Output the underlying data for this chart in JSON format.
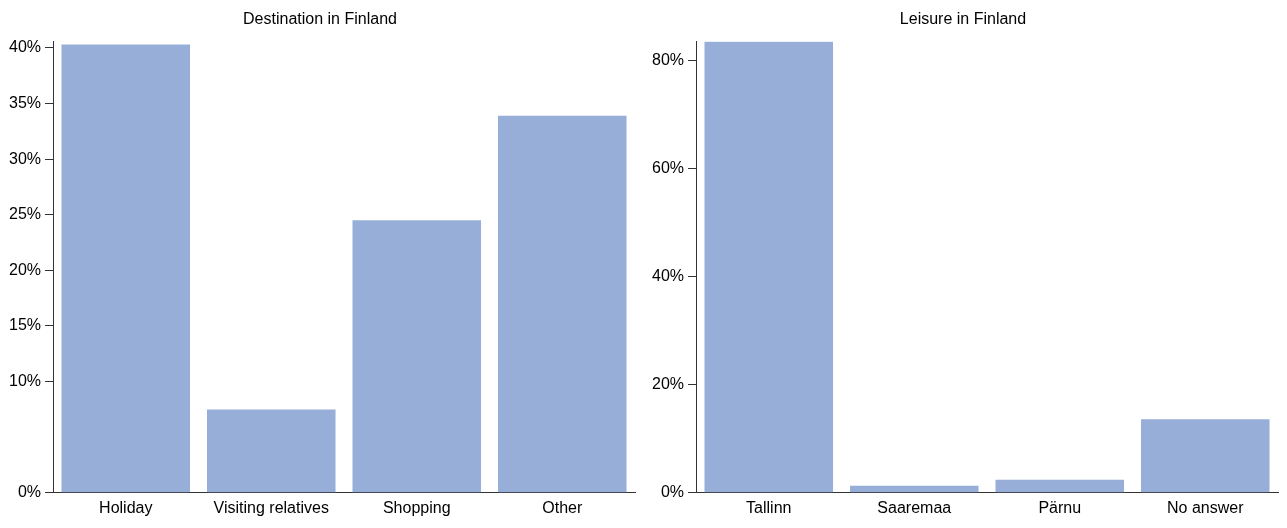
{
  "chart_data": [
    {
      "type": "bar",
      "title": "Destination in Finland",
      "categories": [
        "Holiday",
        "Visiting relatives",
        "Shopping",
        "Other"
      ],
      "values": [
        40.3,
        7.5,
        24.5,
        33.9
      ],
      "color": "#97aed8",
      "ylim": [
        0,
        40.6
      ],
      "yticks": [
        {
          "value": 0,
          "label": "0%"
        },
        {
          "value": 10,
          "label": "10%"
        },
        {
          "value": 15,
          "label": "15%"
        },
        {
          "value": 20,
          "label": "20%"
        },
        {
          "value": 25,
          "label": "25%"
        },
        {
          "value": 30,
          "label": "30%"
        },
        {
          "value": 35,
          "label": "35%"
        },
        {
          "value": 40,
          "label": "40%"
        }
      ],
      "grid": false,
      "legend": false
    },
    {
      "type": "bar",
      "title": "Leisure in Finland",
      "categories": [
        "Tallinn",
        "Saaremaa",
        "Pärnu",
        "No answer"
      ],
      "values": [
        83.5,
        1.3,
        2.4,
        13.6
      ],
      "color": "#97aed8",
      "ylim": [
        0,
        83.6
      ],
      "yticks": [
        {
          "value": 0,
          "label": "0%"
        },
        {
          "value": 20,
          "label": "20%"
        },
        {
          "value": 40,
          "label": "40%"
        },
        {
          "value": 60,
          "label": "60%"
        },
        {
          "value": 80,
          "label": "80%"
        }
      ],
      "grid": false,
      "legend": false
    }
  ]
}
